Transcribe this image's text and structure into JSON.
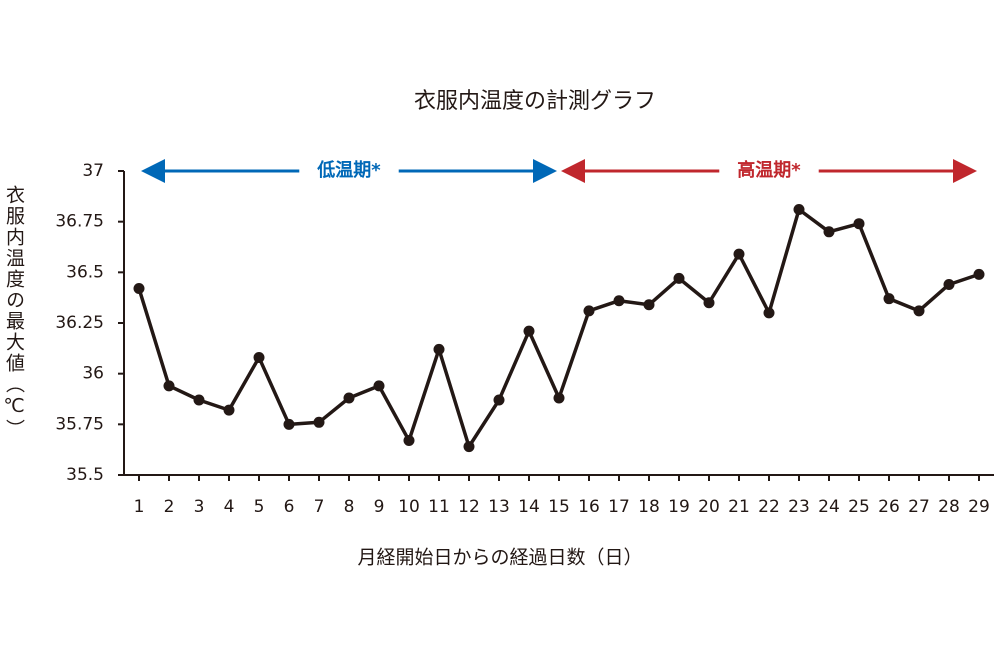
{
  "chart_data": {
    "type": "line",
    "title": "衣服内温度の計測グラフ",
    "x_label": "月経開始日からの経過日数（日）",
    "y_label": "衣服内温度の最大値（℃）",
    "x": [
      1,
      2,
      3,
      4,
      5,
      6,
      7,
      8,
      9,
      10,
      11,
      12,
      13,
      14,
      15,
      16,
      17,
      18,
      19,
      20,
      21,
      22,
      23,
      24,
      25,
      26,
      27,
      28,
      29
    ],
    "series": [
      {
        "color": "#231815",
        "values": [
          36.42,
          35.94,
          35.87,
          35.82,
          36.08,
          35.75,
          35.76,
          35.88,
          35.94,
          35.67,
          36.12,
          35.64,
          35.87,
          36.21,
          35.88,
          36.31,
          36.36,
          36.34,
          36.47,
          36.35,
          36.59,
          36.3,
          36.81,
          36.7,
          36.74,
          36.37,
          36.31,
          36.44,
          36.49
        ]
      }
    ],
    "xlim": [
      1,
      29
    ],
    "xticks": [
      1,
      2,
      3,
      4,
      5,
      6,
      7,
      8,
      9,
      10,
      11,
      12,
      13,
      14,
      15,
      16,
      17,
      18,
      19,
      20,
      21,
      22,
      23,
      24,
      25,
      26,
      27,
      28,
      29
    ],
    "ylim": [
      35.5,
      37
    ],
    "yticks": [
      35.5,
      35.75,
      36,
      36.25,
      36.5,
      36.75,
      37
    ],
    "grid": false,
    "annotations": [
      {
        "text": "低温期*",
        "color": "#0068b7",
        "x_range": [
          1,
          15
        ]
      },
      {
        "text": "高温期*",
        "color": "#c0272d",
        "x_range": [
          15,
          29
        ]
      }
    ]
  }
}
